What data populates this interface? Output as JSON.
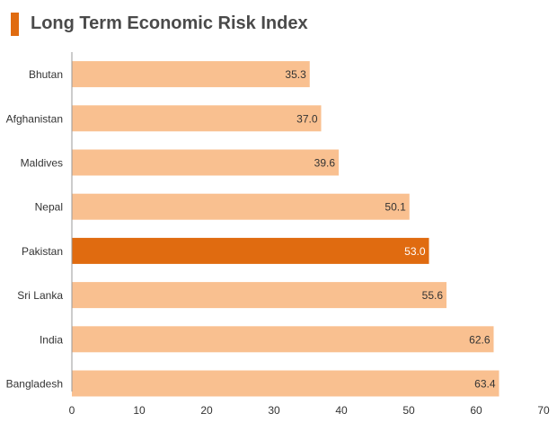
{
  "chart_data": {
    "type": "bar",
    "orientation": "horizontal",
    "title": "Long Term Economic Risk Index",
    "categories": [
      "Bhutan",
      "Afghanistan",
      "Maldives",
      "Nepal",
      "Pakistan",
      "Sri Lanka",
      "India",
      "Bangladesh"
    ],
    "values": [
      35.3,
      37.0,
      39.6,
      50.1,
      53.0,
      55.6,
      62.6,
      63.4
    ],
    "value_labels": [
      "35.3",
      "37.0",
      "39.6",
      "50.1",
      "53.0",
      "55.6",
      "62.6",
      "63.4"
    ],
    "highlighted_category": "Pakistan",
    "xlim": [
      0,
      70
    ],
    "x_ticks": [
      0,
      10,
      20,
      30,
      40,
      50,
      60,
      70
    ],
    "xlabel": "",
    "ylabel": "",
    "grid": false,
    "legend": "none"
  },
  "colors": {
    "bar": "#f9c090",
    "highlight": "#e06b10",
    "accent": "#e06b10",
    "label_text": "#333333",
    "highlight_label_text": "#ffffff",
    "axis": "#999999"
  }
}
